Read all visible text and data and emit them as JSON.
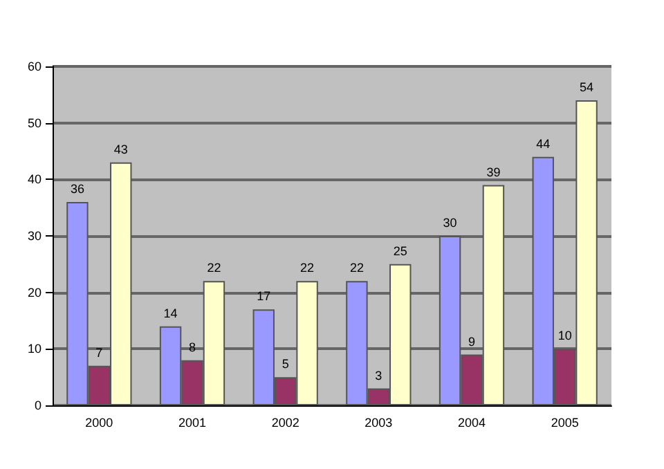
{
  "chart_data": {
    "type": "bar",
    "categories": [
      "2000",
      "2001",
      "2002",
      "2003",
      "2004",
      "2005"
    ],
    "series": [
      {
        "color": "#9999ff",
        "values": [
          36,
          14,
          17,
          22,
          30,
          44
        ]
      },
      {
        "color": "#993366",
        "values": [
          7,
          8,
          5,
          3,
          9,
          10
        ]
      },
      {
        "color": "#ffffcc",
        "values": [
          43,
          22,
          22,
          25,
          39,
          54
        ]
      }
    ],
    "ylim": [
      0,
      60
    ],
    "yticks": [
      0,
      10,
      20,
      30,
      40,
      50,
      60
    ],
    "grid": "y",
    "data_labels": true
  }
}
